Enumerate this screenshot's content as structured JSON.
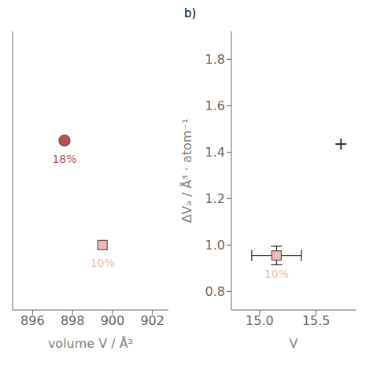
{
  "chart_data": [
    {
      "type": "scatter",
      "x_label": "volume V / Å³",
      "xlim": [
        895.0,
        902.8
      ],
      "xticks": [
        896,
        898,
        900,
        902
      ],
      "ylim": [
        0.72,
        1.92
      ],
      "yticks": [],
      "tick_labels": "x",
      "series": [
        {
          "x": [
            897.6
          ],
          "values": [
            1.45
          ],
          "color": "#c0504d",
          "marker": "circle",
          "annotation": {
            "text": "18%",
            "color": "#c05050"
          }
        },
        {
          "x": [
            899.5
          ],
          "values": [
            1.0
          ],
          "color": "#f2b8b8",
          "marker": "square",
          "annotation": {
            "text": "10%",
            "color": "#f2b8b8"
          }
        }
      ]
    },
    {
      "type": "scatter",
      "title": "b)",
      "x_label": "V",
      "y_label": "ΔVₐ / Å³ · atom⁻¹",
      "xlim": [
        14.75,
        15.85
      ],
      "xticks": [
        {
          "value": 15.0,
          "label": "15.0"
        },
        15.5
      ],
      "ylim": [
        0.72,
        1.92
      ],
      "yticks": [
        0.8,
        {
          "value": 1.0,
          "label": "1.0"
        },
        1.2,
        1.4,
        1.6,
        1.8
      ],
      "series": [
        {
          "x": [
            15.15
          ],
          "values": [
            0.955
          ],
          "x_error": [
            0.22
          ],
          "y_error": [
            0.04
          ],
          "color": "#f2b8b8",
          "marker": "square",
          "annotation": {
            "text": "10%",
            "color": "#f2b8b8"
          }
        },
        {
          "x": [
            15.72
          ],
          "values": [
            1.435
          ],
          "color": "#333333",
          "marker": "plus"
        }
      ]
    }
  ]
}
